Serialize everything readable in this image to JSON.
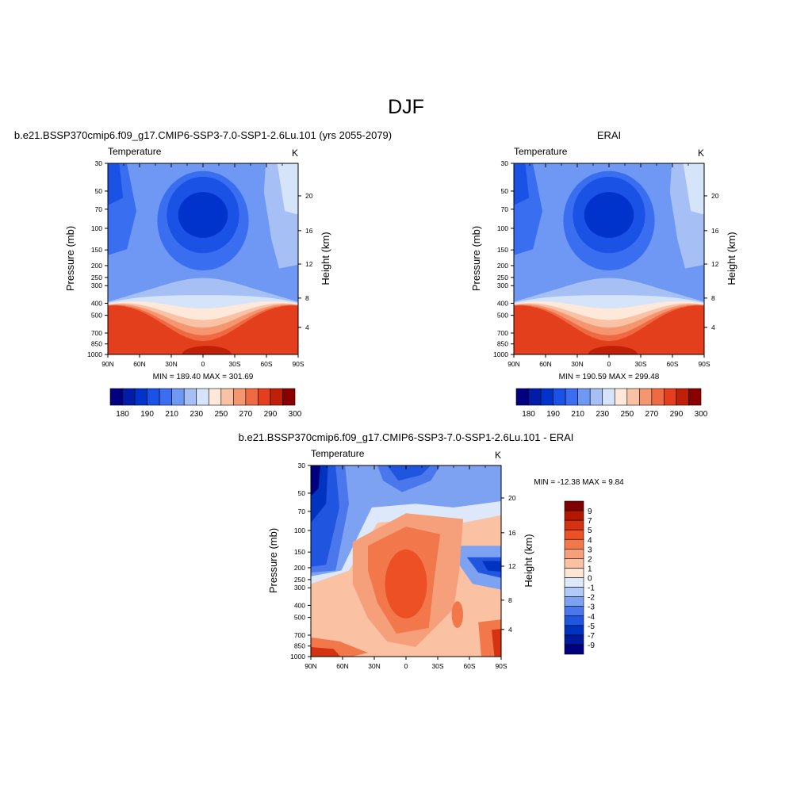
{
  "page_title": "DJF",
  "colors": {
    "cool_to_warm": [
      "#00007f",
      "#001ca8",
      "#0033cc",
      "#1a52e6",
      "#3a6ef0",
      "#6e98f3",
      "#a6c0f6",
      "#d6e4fa",
      "#fde8da",
      "#f9c2a4",
      "#f59670",
      "#ef6a42",
      "#e43f1c",
      "#be2008",
      "#8a0000"
    ],
    "diff_palette": [
      "#00007f",
      "#00199d",
      "#0033c0",
      "#1f55df",
      "#4a78ec",
      "#7ea2f2",
      "#b1caf7",
      "#dde9fb",
      "#fde6d6",
      "#fac1a2",
      "#f69f7b",
      "#f2784c",
      "#ec5024",
      "#d53212",
      "#b51800",
      "#7f0000"
    ]
  },
  "chart_data": [
    {
      "type": "heatmap",
      "panel_title": "b.e21.BSSP370cmip6.f09_g17.CMIP6-SSP3-7.0-SSP1-2.6Lu.101 (yrs 2055-2079)",
      "left_label": "Temperature",
      "units_label": "K",
      "ylabel": "Pressure (mb)",
      "y2label": "Height (km)",
      "x_ticks": [
        "90N",
        "60N",
        "30N",
        "0",
        "30S",
        "60S",
        "90S"
      ],
      "y_ticks": [
        "30",
        "50",
        "70",
        "100",
        "150",
        "200",
        "250",
        "300",
        "400",
        "500",
        "700",
        "850",
        "1000"
      ],
      "y2_ticks": [
        "20",
        "16",
        "12",
        "8",
        "4"
      ],
      "stats": "MIN = 189.40  MAX = 301.69",
      "colorbar_labels": [
        "180",
        "190",
        "210",
        "230",
        "250",
        "270",
        "290",
        "300"
      ]
    },
    {
      "type": "heatmap",
      "panel_title": "ERAI",
      "left_label": "Temperature",
      "units_label": "K",
      "ylabel": "Pressure (mb)",
      "y2label": "Height (km)",
      "x_ticks": [
        "90N",
        "60N",
        "30N",
        "0",
        "30S",
        "60S",
        "90S"
      ],
      "y_ticks": [
        "30",
        "50",
        "70",
        "100",
        "150",
        "200",
        "250",
        "300",
        "400",
        "500",
        "700",
        "850",
        "1000"
      ],
      "y2_ticks": [
        "20",
        "16",
        "12",
        "8",
        "4"
      ],
      "stats": "MIN = 190.59  MAX = 299.48",
      "colorbar_labels": [
        "180",
        "190",
        "210",
        "230",
        "250",
        "270",
        "290",
        "300"
      ]
    },
    {
      "type": "heatmap",
      "panel_title": "b.e21.BSSP370cmip6.f09_g17.CMIP6-SSP3-7.0-SSP1-2.6Lu.101 - ERAI",
      "left_label": "Temperature",
      "units_label": "K",
      "ylabel": "Pressure (mb)",
      "y2label": "Height (km)",
      "x_ticks": [
        "90N",
        "60N",
        "30N",
        "0",
        "30S",
        "60S",
        "90S"
      ],
      "y_ticks": [
        "30",
        "50",
        "70",
        "100",
        "150",
        "200",
        "250",
        "300",
        "400",
        "500",
        "700",
        "850",
        "1000"
      ],
      "y2_ticks": [
        "20",
        "16",
        "12",
        "8",
        "4"
      ],
      "stats": "MIN = -12.38  MAX =   9.84",
      "colorbar_labels": [
        "9",
        "7",
        "5",
        "4",
        "3",
        "2",
        "1",
        "0",
        "-1",
        "-2",
        "-3",
        "-4",
        "-5",
        "-7",
        "-9"
      ]
    }
  ]
}
